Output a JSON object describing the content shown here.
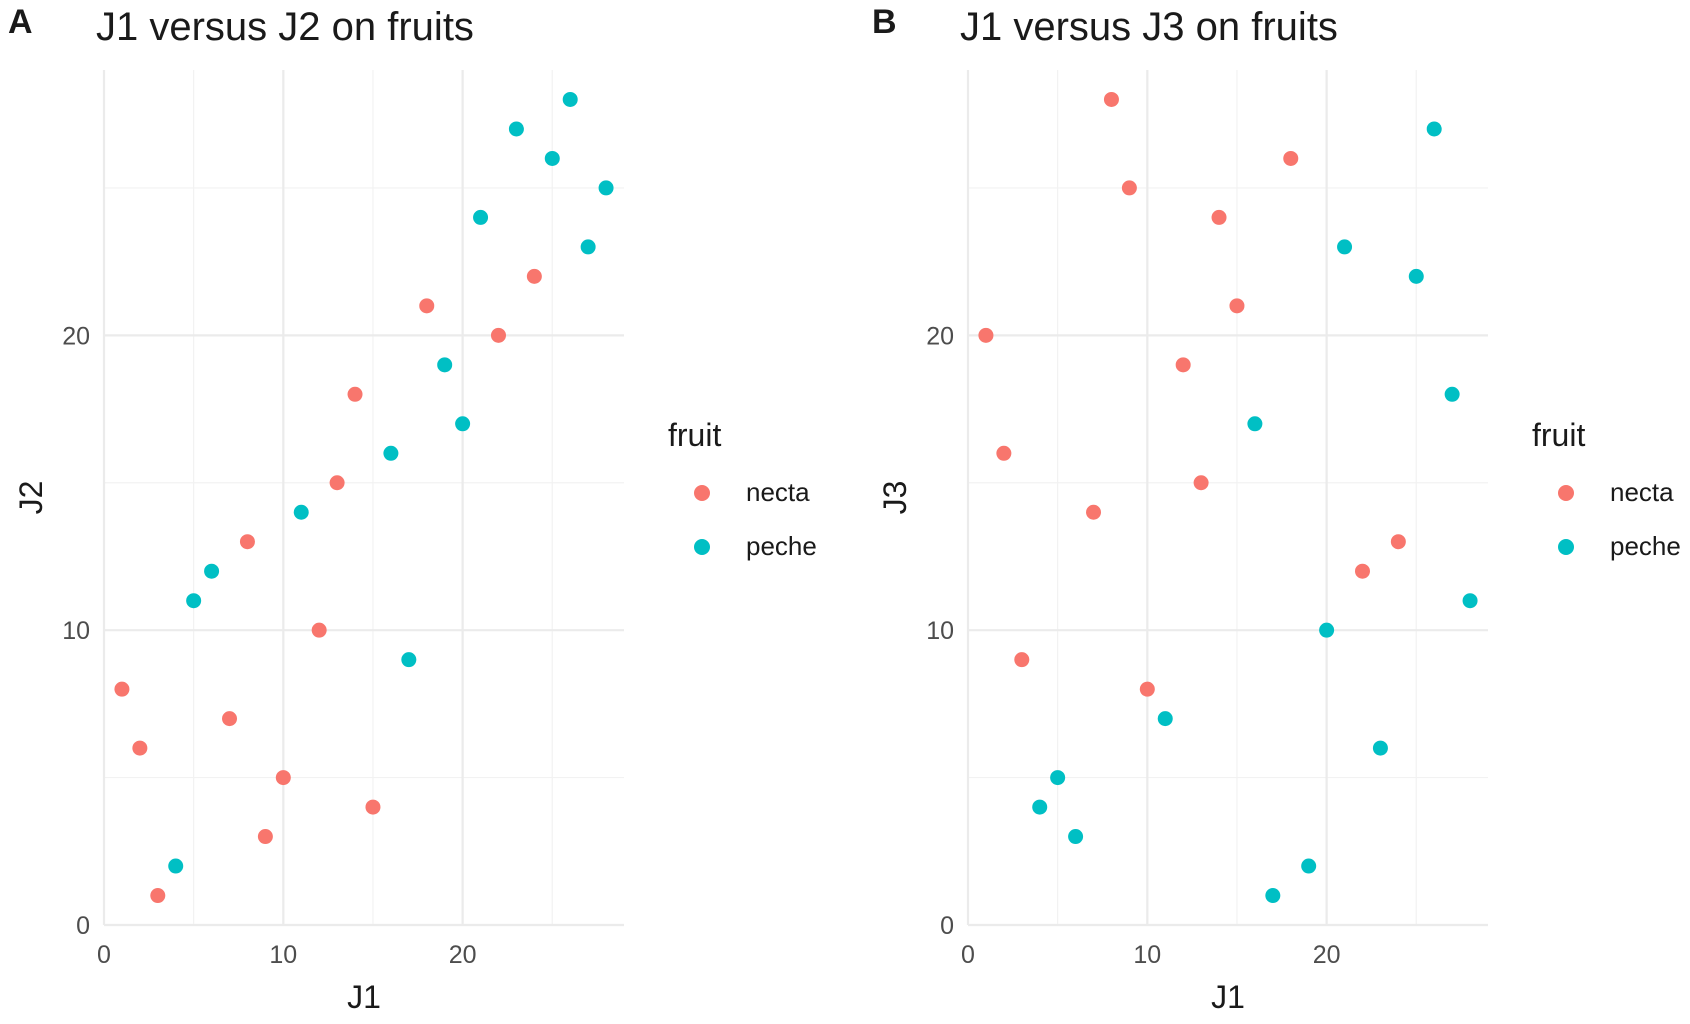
{
  "colors": {
    "necta": "#F8766D",
    "peche": "#00BFC4",
    "grid": "#ebebeb",
    "text": "#1a1a1a",
    "tick": "#4d4d4d"
  },
  "chart_data": [
    {
      "type": "scatter",
      "panel_label": "A",
      "title": "J1 versus J2 on fruits",
      "xlabel": "J1",
      "ylabel": "J2",
      "xlim": [
        0,
        29
      ],
      "ylim": [
        0,
        29
      ],
      "x_ticks": [
        0,
        10,
        20
      ],
      "y_ticks": [
        0,
        10,
        20
      ],
      "legend_title": "fruit",
      "legend_position": "right",
      "grid": true,
      "series": [
        {
          "name": "necta",
          "color": "#F8766D",
          "x": [
            1,
            2,
            3,
            7,
            8,
            9,
            10,
            12,
            13,
            14,
            15,
            18,
            22,
            24
          ],
          "y": [
            8,
            6,
            1,
            7,
            13,
            3,
            5,
            10,
            15,
            18,
            4,
            21,
            20,
            22
          ]
        },
        {
          "name": "peche",
          "color": "#00BFC4",
          "x": [
            4,
            5,
            6,
            11,
            16,
            17,
            19,
            20,
            21,
            23,
            25,
            26,
            27,
            28
          ],
          "y": [
            2,
            11,
            12,
            14,
            16,
            9,
            19,
            17,
            24,
            27,
            26,
            28,
            23,
            25
          ]
        }
      ]
    },
    {
      "type": "scatter",
      "panel_label": "B",
      "title": "J1 versus J3 on fruits",
      "xlabel": "J1",
      "ylabel": "J3",
      "xlim": [
        0,
        29
      ],
      "ylim": [
        0,
        29
      ],
      "x_ticks": [
        0,
        10,
        20
      ],
      "y_ticks": [
        0,
        10,
        20
      ],
      "legend_title": "fruit",
      "legend_position": "right",
      "grid": true,
      "series": [
        {
          "name": "necta",
          "color": "#F8766D",
          "x": [
            1,
            2,
            3,
            7,
            8,
            9,
            10,
            12,
            13,
            14,
            15,
            18,
            22,
            24
          ],
          "y": [
            20,
            16,
            9,
            14,
            28,
            25,
            8,
            19,
            15,
            24,
            21,
            26,
            12,
            13
          ]
        },
        {
          "name": "peche",
          "color": "#00BFC4",
          "x": [
            4,
            5,
            6,
            11,
            16,
            17,
            19,
            20,
            21,
            23,
            25,
            26,
            27,
            28
          ],
          "y": [
            4,
            5,
            3,
            7,
            17,
            1,
            2,
            10,
            23,
            6,
            22,
            27,
            18,
            11
          ]
        }
      ]
    }
  ]
}
